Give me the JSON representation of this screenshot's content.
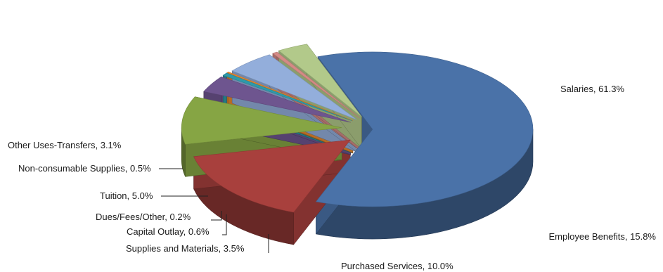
{
  "chart_data": {
    "type": "pie",
    "style": "3d-exploded",
    "title": "",
    "slices": [
      {
        "label": "Salaries, 61.3%",
        "name": "Salaries",
        "value": 61.3,
        "color": "#4A72A8"
      },
      {
        "label": "Employee Benefits, 15.8%",
        "name": "Employee Benefits",
        "value": 15.8,
        "color": "#A8403D"
      },
      {
        "label": "Purchased Services, 10.0%",
        "name": "Purchased Services",
        "value": 10.0,
        "color": "#86A544"
      },
      {
        "label": "Supplies and Materials, 3.5%",
        "name": "Supplies and Materials",
        "value": 3.5,
        "color": "#6E558F"
      },
      {
        "label": "Capital Outlay, 0.6%",
        "name": "Capital Outlay",
        "value": 0.6,
        "color": "#2E9AAA"
      },
      {
        "label": "Dues/Fees/Other, 0.2%",
        "name": "Dues/Fees/Other",
        "value": 0.2,
        "color": "#E98A2E"
      },
      {
        "label": "Tuition, 5.0%",
        "name": "Tuition",
        "value": 5.0,
        "color": "#93AEDB"
      },
      {
        "label": "Non-consumable Supplies, 0.5%",
        "name": "Non-consumable Supplies",
        "value": 0.5,
        "color": "#D48A86"
      },
      {
        "label": "Other Uses-Transfers, 3.1%",
        "name": "Other Uses-Transfers",
        "value": 3.1,
        "color": "#B2C98A"
      }
    ]
  }
}
